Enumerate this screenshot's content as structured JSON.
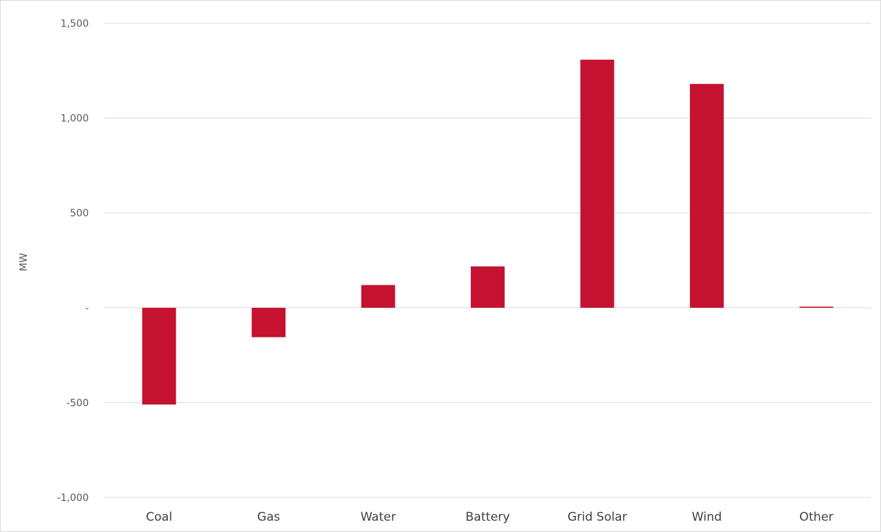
{
  "chart_data": {
    "type": "bar",
    "title": "",
    "xlabel": "",
    "ylabel": "MW",
    "categories": [
      "Coal",
      "Gas",
      "Water",
      "Battery",
      "Grid Solar",
      "Wind",
      "Other"
    ],
    "values": [
      -510,
      -155,
      120,
      218,
      1308,
      1180,
      6
    ],
    "ylim": [
      -1000,
      1500
    ],
    "yticks": [
      1500,
      1000,
      500,
      0,
      -500,
      -1000
    ],
    "ytick_labels": [
      "1,500",
      "1,000",
      "500",
      "-",
      "-500",
      "-1,000"
    ],
    "grid": true,
    "legend": "none",
    "bar_color": "#c41230"
  }
}
